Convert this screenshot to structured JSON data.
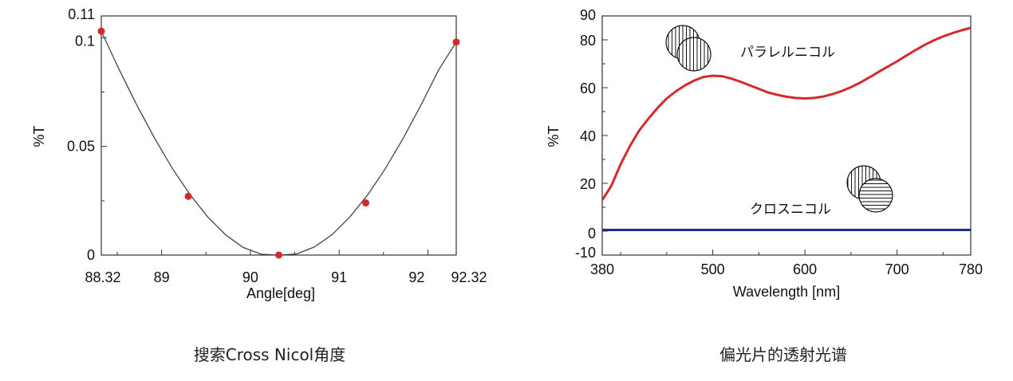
{
  "captions": {
    "left": "搜索Cross Nicol角度",
    "right": "偏光片的透射光谱"
  },
  "chart_data": [
    {
      "type": "scatter",
      "title": "",
      "xlabel": "Angle[deg]",
      "ylabel": "%T",
      "xlim": [
        88.32,
        92.32
      ],
      "ylim": [
        0,
        0.11
      ],
      "xticks": [
        88.32,
        89,
        90,
        91,
        92,
        92.32
      ],
      "xtick_labels": [
        "88.32",
        "89",
        "90",
        "91",
        "92",
        "92.32"
      ],
      "yticks": [
        0,
        0.05,
        0.1,
        0.11
      ],
      "ytick_labels": [
        "0",
        "0.05",
        "0.1",
        "0.11"
      ],
      "grid": false,
      "series": [
        {
          "kind": "scatter",
          "color": "#d42a2a",
          "x": [
            88.32,
            89.3,
            90.32,
            91.3,
            92.32
          ],
          "y": [
            0.103,
            0.027,
            0.0,
            0.024,
            0.098
          ]
        },
        {
          "kind": "fit-curve",
          "color": "#444444",
          "x": [
            88.32,
            88.52,
            88.72,
            88.92,
            89.12,
            89.32,
            89.52,
            89.72,
            89.92,
            90.12,
            90.32,
            90.52,
            90.72,
            90.92,
            91.12,
            91.32,
            91.52,
            91.72,
            91.92,
            92.12,
            92.32
          ],
          "y": [
            0.103,
            0.0854,
            0.069,
            0.0538,
            0.0399,
            0.0278,
            0.0175,
            0.0093,
            0.0035,
            0.0004,
            0.0,
            0.0005,
            0.0037,
            0.0094,
            0.0175,
            0.0276,
            0.0397,
            0.0536,
            0.0688,
            0.0851,
            0.098
          ]
        }
      ]
    },
    {
      "type": "line",
      "title": "",
      "xlabel": "Wavelength [nm]",
      "ylabel": "%T",
      "xlim": [
        380,
        780
      ],
      "ylim": [
        -10,
        90
      ],
      "xticks": [
        380,
        500,
        600,
        700,
        780
      ],
      "yticks": [
        -10,
        0,
        20,
        40,
        60,
        80,
        90
      ],
      "grid": false,
      "series": [
        {
          "name": "パラレルニコル",
          "color": "#d42a2a",
          "x": [
            380,
            390,
            400,
            410,
            420,
            430,
            440,
            450,
            460,
            470,
            480,
            490,
            500,
            510,
            520,
            530,
            540,
            550,
            560,
            570,
            580,
            590,
            600,
            610,
            620,
            630,
            640,
            650,
            660,
            670,
            680,
            690,
            700,
            710,
            720,
            730,
            740,
            750,
            760,
            770,
            780
          ],
          "y": [
            13,
            19,
            28,
            35.5,
            42,
            47,
            51.5,
            55.5,
            58.5,
            61,
            63,
            64.5,
            65,
            64.8,
            63.8,
            62.5,
            61,
            59.5,
            58,
            57,
            56.2,
            55.7,
            55.5,
            55.7,
            56.3,
            57.3,
            58.6,
            60.2,
            62.1,
            64.3,
            66.6,
            68.8,
            71,
            73.4,
            75.7,
            77.9,
            79.8,
            81.4,
            82.8,
            84,
            85
          ]
        },
        {
          "name": "クロスニコル",
          "color": "#1a2e8c",
          "x": [
            380,
            780
          ],
          "y": [
            0.5,
            0.5
          ]
        }
      ]
    }
  ],
  "icons": {
    "parallel": "parallel-polarizers-icon",
    "crossed": "crossed-polarizers-icon"
  }
}
